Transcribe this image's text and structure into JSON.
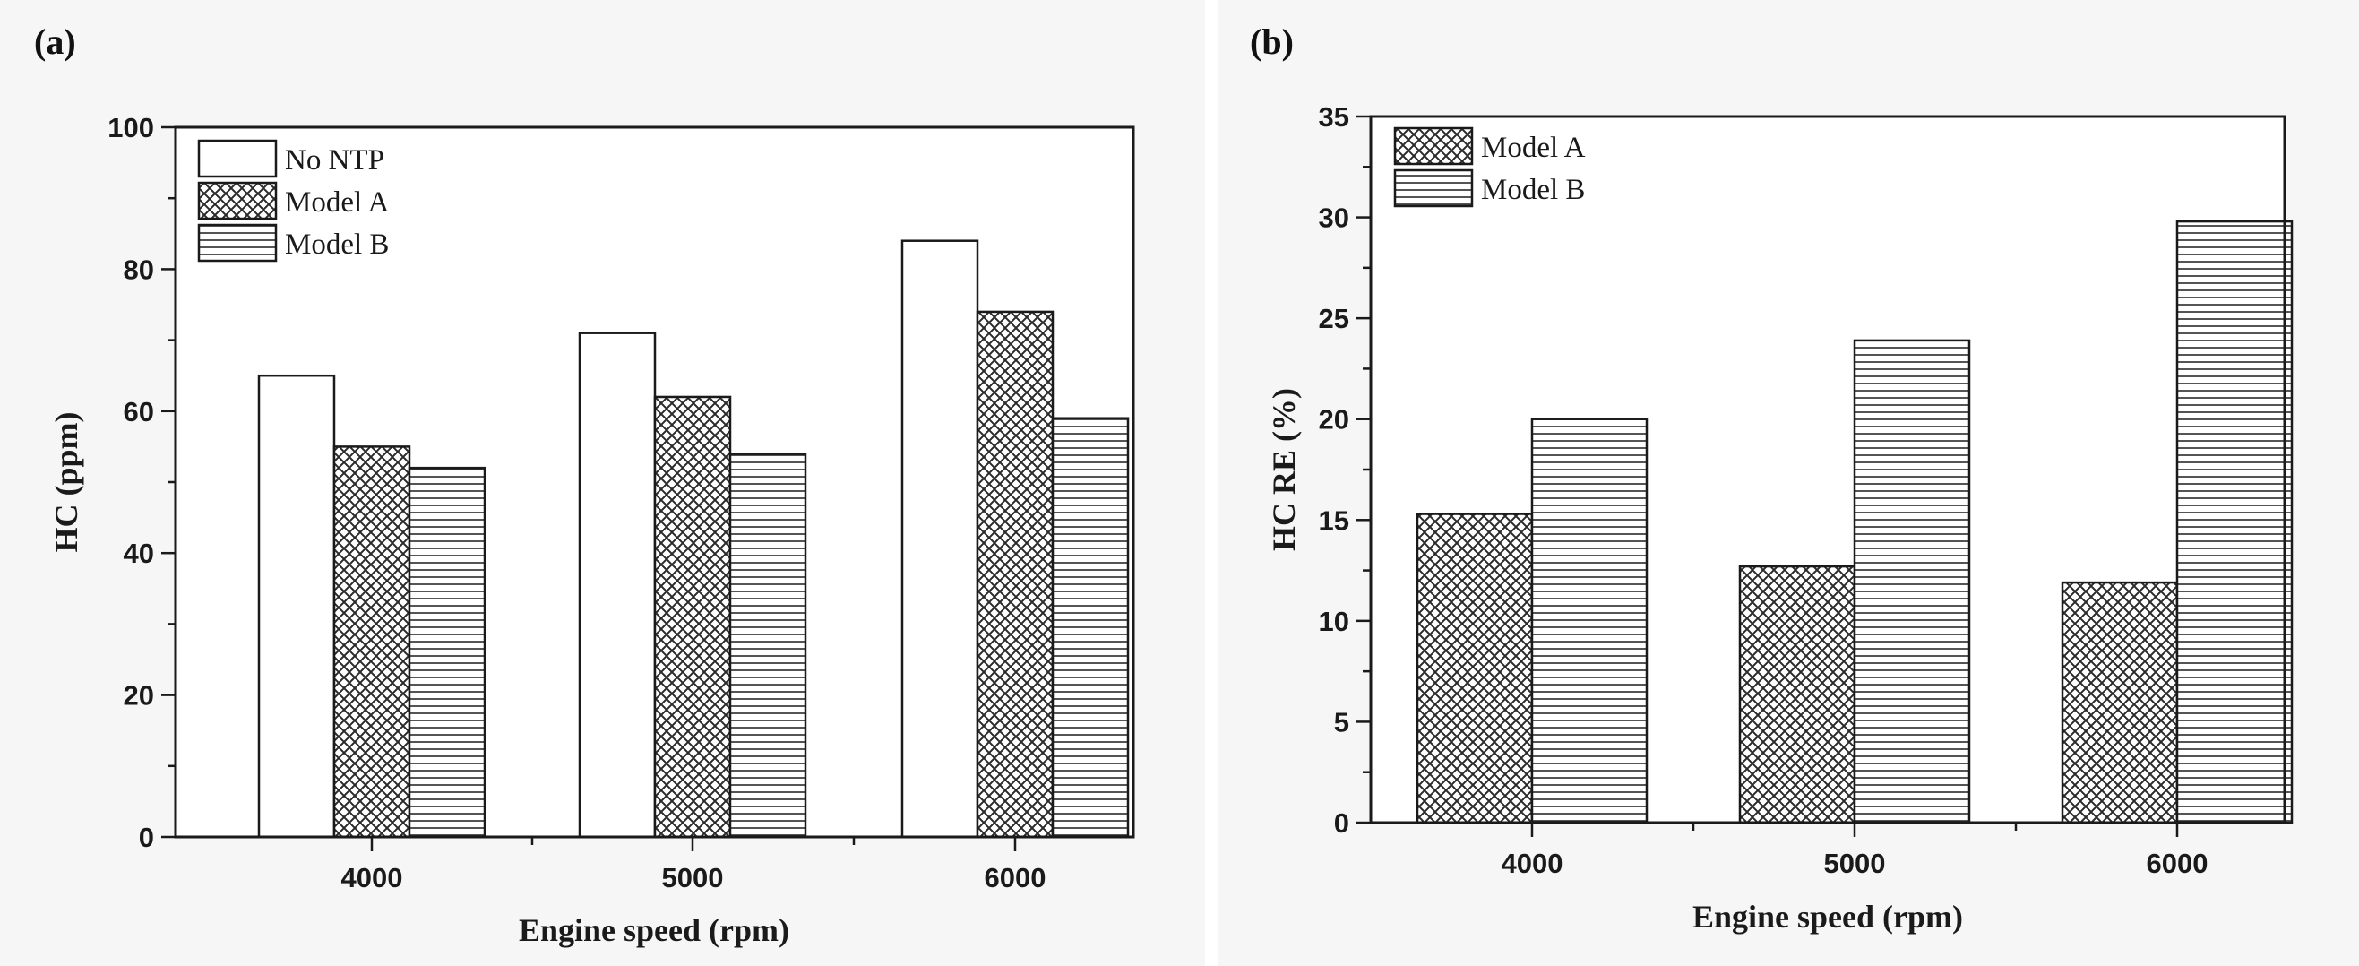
{
  "chart_data": [
    {
      "panel_label": "(a)",
      "type": "bar",
      "categories": [
        "4000",
        "5000",
        "6000"
      ],
      "series": [
        {
          "name": "No NTP",
          "pattern": "plain",
          "values": [
            65,
            71,
            84
          ]
        },
        {
          "name": "Model A",
          "pattern": "crosshatch",
          "values": [
            55,
            62,
            74
          ]
        },
        {
          "name": "Model B",
          "pattern": "horizontal",
          "values": [
            52,
            54,
            59
          ]
        }
      ],
      "xlabel": "Engine speed (rpm)",
      "ylabel": "HC (ppm)",
      "ylim": [
        0,
        100
      ],
      "yticks": [
        0,
        20,
        40,
        60,
        80,
        100
      ],
      "legend_position": "top-left"
    },
    {
      "panel_label": "(b)",
      "type": "bar",
      "categories": [
        "4000",
        "5000",
        "6000"
      ],
      "series": [
        {
          "name": "Model A",
          "pattern": "crosshatch",
          "values": [
            15.3,
            12.7,
            11.9
          ]
        },
        {
          "name": "Model B",
          "pattern": "horizontal",
          "values": [
            20.0,
            23.9,
            29.8
          ]
        }
      ],
      "xlabel": "Engine speed (rpm)",
      "ylabel": "HC RE (%)",
      "ylim": [
        0,
        35
      ],
      "yticks": [
        0,
        5,
        10,
        15,
        20,
        25,
        30,
        35
      ],
      "legend_position": "top-left"
    }
  ]
}
